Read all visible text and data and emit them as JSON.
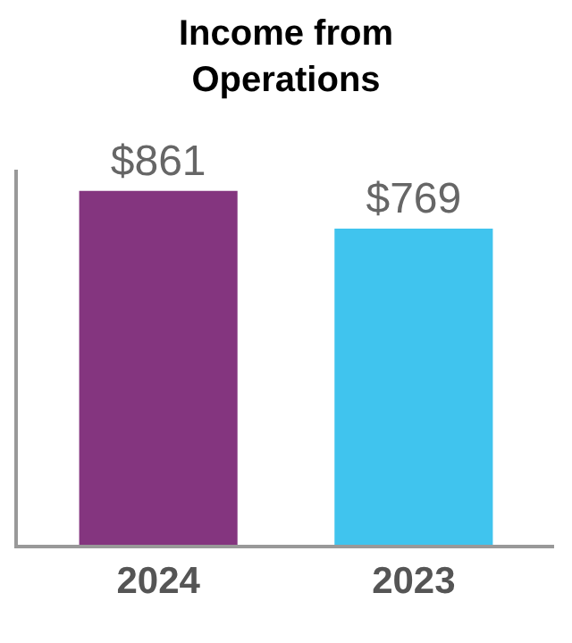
{
  "chart_data": {
    "type": "bar",
    "title": "Income from Operations",
    "categories": [
      "2024",
      "2023"
    ],
    "values": [
      861,
      769
    ],
    "colors": [
      "#84357f",
      "#40c4ee"
    ],
    "value_labels": [
      "$861",
      "$769"
    ],
    "legend": false
  }
}
